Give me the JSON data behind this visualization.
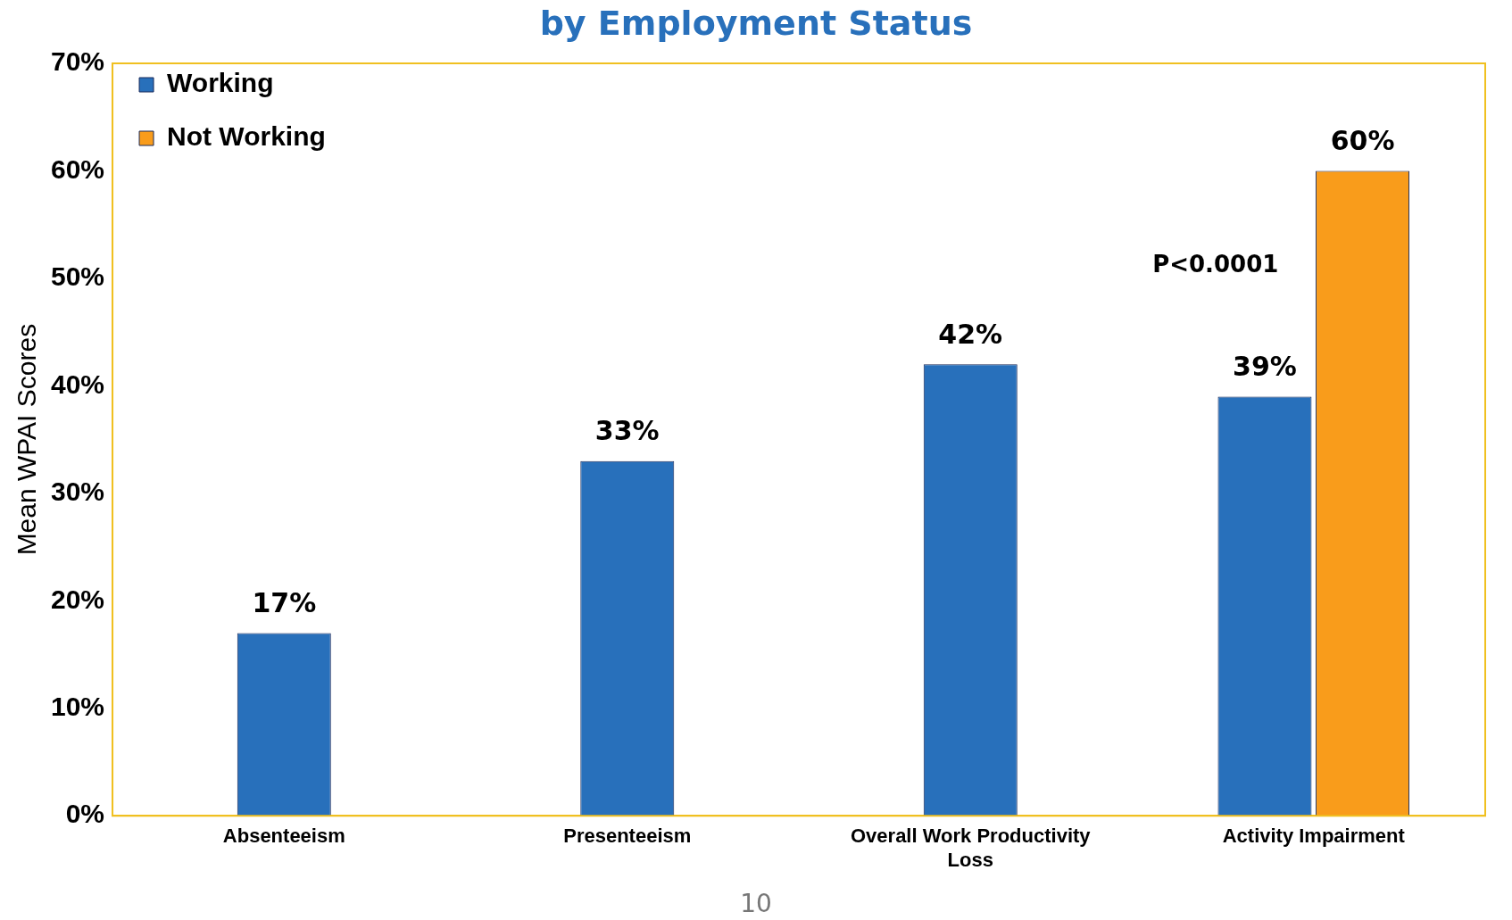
{
  "chart_data": {
    "type": "bar",
    "title": "by Employment Status",
    "ylabel": "Mean WPAI Scores",
    "categories": [
      "Absenteeism",
      "Presenteeism",
      "Overall Work Productivity Loss",
      "Activity Impairment"
    ],
    "series": [
      {
        "name": "Working",
        "color": "#2870bb",
        "values": [
          17,
          33,
          42,
          39
        ]
      },
      {
        "name": "Not Working",
        "color": "#f99c1b",
        "values": [
          null,
          null,
          null,
          60
        ]
      }
    ],
    "ylim": [
      0,
      70
    ],
    "yticks": [
      {
        "value": 0,
        "label": "0%"
      },
      {
        "value": 10,
        "label": "10%"
      },
      {
        "value": 20,
        "label": "20%"
      },
      {
        "value": 30,
        "label": "30%"
      },
      {
        "value": 40,
        "label": "40%"
      },
      {
        "value": 50,
        "label": "50%"
      },
      {
        "value": 60,
        "label": "60%"
      },
      {
        "value": 70,
        "label": "70%"
      }
    ],
    "value_labels": [
      [
        "17%",
        "33%",
        "42%",
        "39%"
      ],
      [
        null,
        null,
        null,
        "60%"
      ]
    ],
    "annotations": [
      "P<0.0001",
      "10"
    ],
    "grid": false,
    "legend": "top left"
  }
}
